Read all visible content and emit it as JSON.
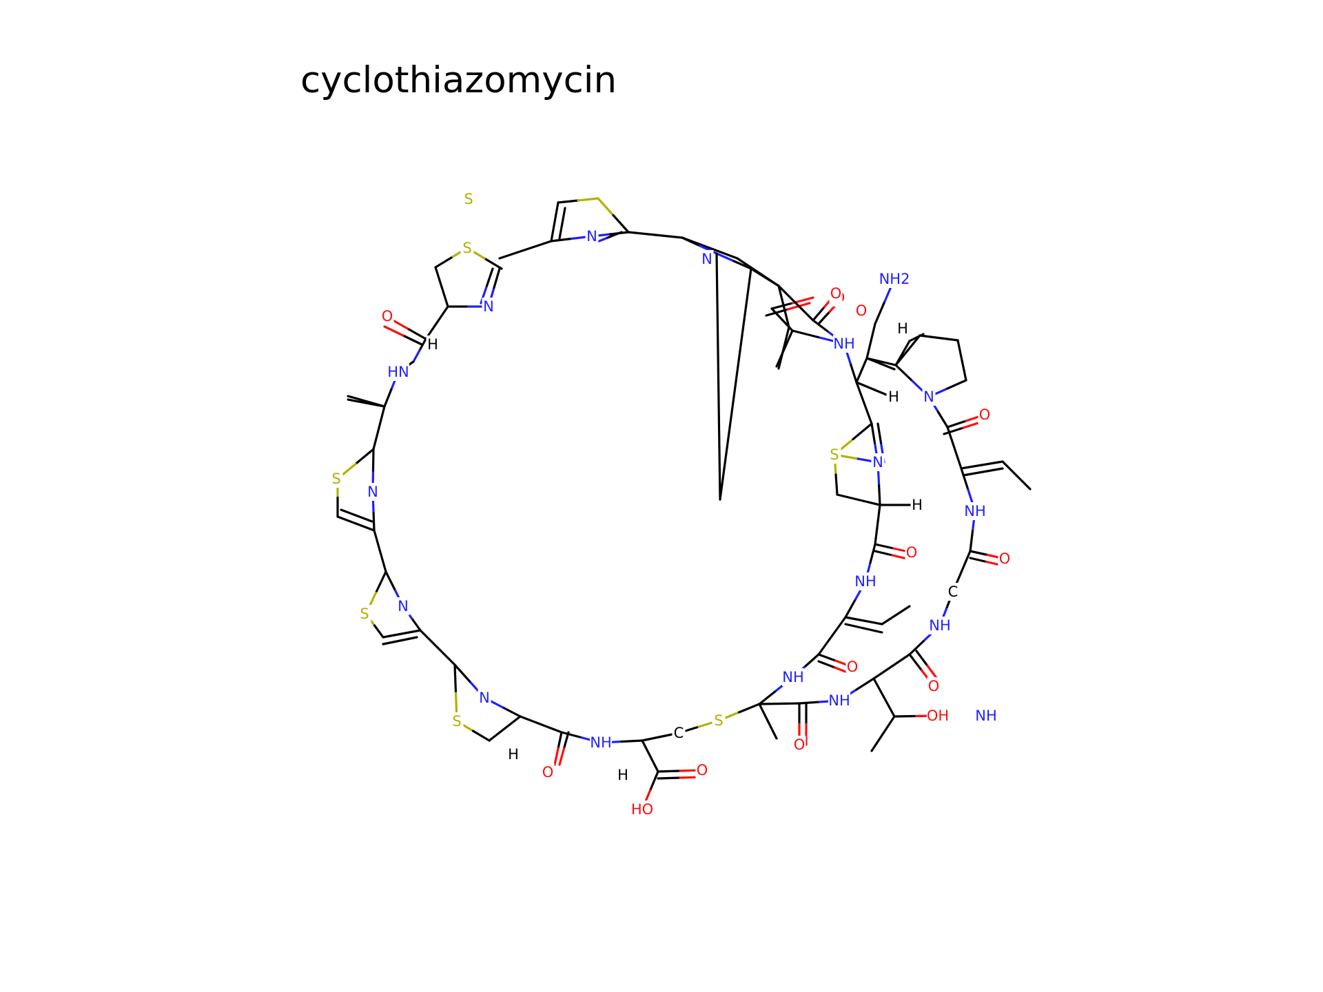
{
  "title": "cyclothiazomycin",
  "colors": {
    "carbon": "#000000",
    "nitrogen": "#1f1fff",
    "oxygen": "#ff0d0d",
    "sulfur": "#b2b200",
    "background": "#ffffff"
  },
  "atoms": [
    {
      "label": "S",
      "element": "S"
    },
    {
      "label": "N",
      "element": "N"
    },
    {
      "label": "S",
      "element": "S"
    },
    {
      "label": "N",
      "element": "N"
    },
    {
      "label": "O",
      "element": "O"
    },
    {
      "label": "H",
      "element": "H"
    },
    {
      "label": "HN",
      "element": "N"
    },
    {
      "label": "S",
      "element": "S"
    },
    {
      "label": "N",
      "element": "N"
    },
    {
      "label": "S",
      "element": "S"
    },
    {
      "label": "N",
      "element": "N"
    },
    {
      "label": "N",
      "element": "N"
    },
    {
      "label": "S",
      "element": "S"
    },
    {
      "label": "H",
      "element": "H"
    },
    {
      "label": "O",
      "element": "O"
    },
    {
      "label": "NH",
      "element": "N"
    },
    {
      "label": "H",
      "element": "H"
    },
    {
      "label": "O",
      "element": "O"
    },
    {
      "label": "HO",
      "element": "O"
    },
    {
      "label": "C",
      "element": "C"
    },
    {
      "label": "S",
      "element": "S"
    },
    {
      "label": "O",
      "element": "O"
    },
    {
      "label": "NH",
      "element": "N"
    },
    {
      "label": "NH",
      "element": "N"
    },
    {
      "label": "O",
      "element": "O"
    },
    {
      "label": "NH",
      "element": "N"
    },
    {
      "label": "O",
      "element": "O"
    },
    {
      "label": "S",
      "element": "S"
    },
    {
      "label": "N",
      "element": "N"
    },
    {
      "label": "H",
      "element": "H"
    },
    {
      "label": "H",
      "element": "H"
    },
    {
      "label": "NH",
      "element": "N"
    },
    {
      "label": "O",
      "element": "O"
    },
    {
      "label": "H",
      "element": "H"
    },
    {
      "label": "NH2",
      "element": "N"
    },
    {
      "label": "O",
      "element": "O"
    },
    {
      "label": "H",
      "element": "H"
    },
    {
      "label": "N",
      "element": "N"
    },
    {
      "label": "O",
      "element": "O"
    },
    {
      "label": "NH",
      "element": "N"
    },
    {
      "label": "O",
      "element": "O"
    },
    {
      "label": "C",
      "element": "C"
    },
    {
      "label": "NH",
      "element": "N"
    },
    {
      "label": "O",
      "element": "O"
    },
    {
      "label": "NH",
      "element": "N"
    },
    {
      "label": "OH",
      "element": "O"
    },
    {
      "label": "N",
      "element": "N"
    },
    {
      "label": "O",
      "element": "O"
    }
  ]
}
